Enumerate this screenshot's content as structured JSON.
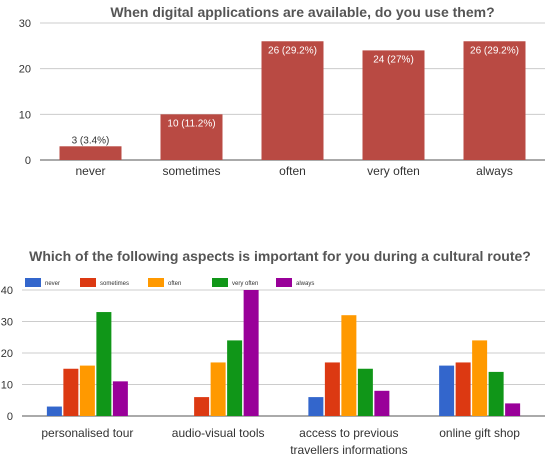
{
  "colors": {
    "bar_primary": "#b94a43",
    "grid": "#cccccc",
    "axis": "#555555",
    "text": "#333333",
    "title": "#555555",
    "series": [
      "#3366cc",
      "#dc3912",
      "#ff9900",
      "#109618",
      "#990099"
    ]
  },
  "chart_data": [
    {
      "type": "bar",
      "title": "When digital applications are available, do you use them?",
      "categories": [
        "never",
        "sometimes",
        "often",
        "very often",
        "always"
      ],
      "values": [
        3,
        10,
        26,
        24,
        26
      ],
      "data_labels": [
        "3 (3.4%)",
        "10 (11.2%)",
        "26 (29.2%)",
        "24 (27%)",
        "26 (29.2%)"
      ],
      "ylim": [
        0,
        30
      ],
      "yticks": [
        0,
        10,
        20,
        30
      ],
      "grid": true
    },
    {
      "type": "bar",
      "title": "Which of the following aspects is important for you during a cultural route?",
      "categories": [
        "personalised tour",
        "audio-visual tools",
        "access to previous travellers informations",
        "online gift shop"
      ],
      "category_lines": [
        [
          "personalised tour"
        ],
        [
          "audio-visual tools"
        ],
        [
          "access to previous",
          "travellers informations"
        ],
        [
          "online gift shop"
        ]
      ],
      "series": [
        {
          "name": "never",
          "values": [
            3,
            0,
            6,
            16
          ]
        },
        {
          "name": "sometimes",
          "values": [
            15,
            6,
            17,
            17
          ]
        },
        {
          "name": "often",
          "values": [
            16,
            17,
            32,
            24
          ]
        },
        {
          "name": "very often",
          "values": [
            33,
            24,
            15,
            14
          ]
        },
        {
          "name": "always",
          "values": [
            11,
            40,
            8,
            4
          ]
        }
      ],
      "ylim": [
        0,
        40
      ],
      "yticks": [
        0,
        10,
        20,
        30,
        40
      ],
      "grid": true,
      "legend_position": "top"
    }
  ]
}
